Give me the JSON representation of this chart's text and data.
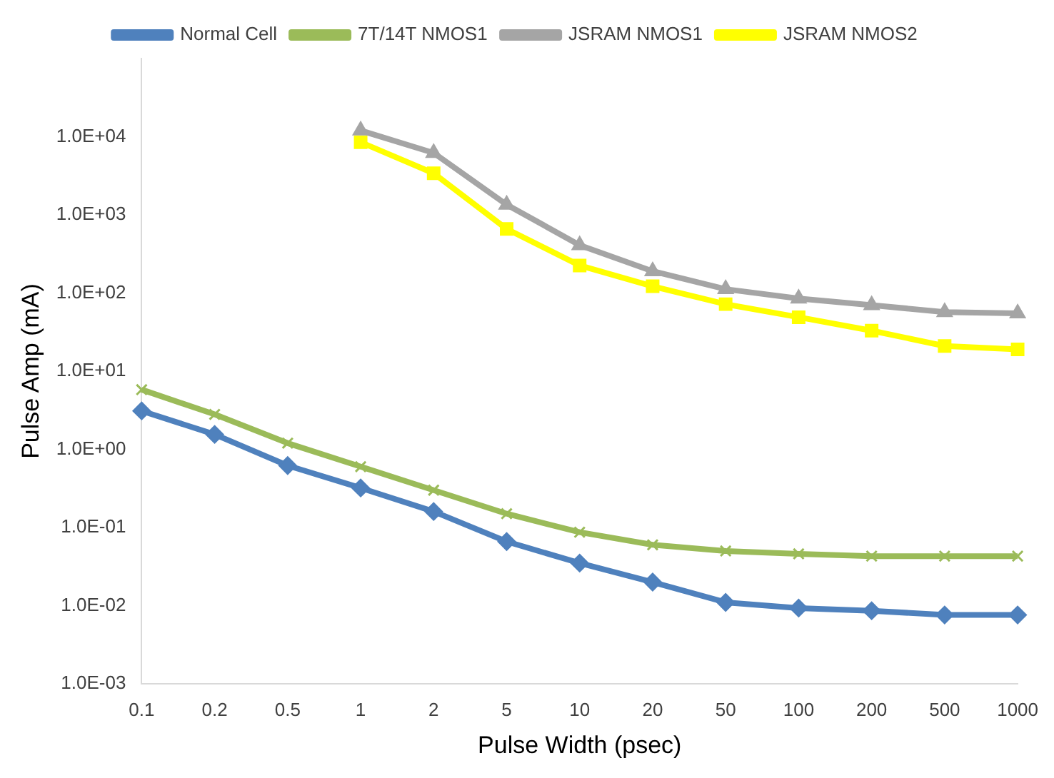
{
  "chart_data": {
    "type": "line",
    "xlabel": "Pulse Width (psec)",
    "ylabel": "Pulse Amp (mA)",
    "categories": [
      "0.1",
      "0.2",
      "0.5",
      "1",
      "2",
      "5",
      "10",
      "20",
      "50",
      "100",
      "200",
      "500",
      "1000"
    ],
    "series": [
      {
        "name": "Normal Cell",
        "color": "#4f81bd",
        "marker": "diamond",
        "values": [
          3.1,
          1.55,
          0.62,
          0.32,
          0.16,
          0.066,
          0.035,
          0.02,
          0.011,
          0.0093,
          0.0086,
          0.0076,
          0.0076
        ]
      },
      {
        "name": "7T/14T NMOS1",
        "color": "#9bbb59",
        "marker": "cross",
        "values": [
          5.8,
          2.8,
          1.2,
          0.6,
          0.3,
          0.15,
          0.087,
          0.06,
          0.05,
          0.046,
          0.043,
          0.043,
          0.043
        ]
      },
      {
        "name": "JSRAM NMOS1",
        "color": "#a5a5a5",
        "marker": "triangle",
        "values": [
          null,
          null,
          null,
          12000,
          6200,
          1350,
          410,
          190,
          112,
          85,
          70,
          57,
          55
        ]
      },
      {
        "name": "JSRAM NMOS2",
        "color": "#ffff00",
        "marker": "square",
        "values": [
          null,
          null,
          null,
          8500,
          3400,
          660,
          225,
          122,
          72,
          49,
          33,
          21,
          19
        ]
      }
    ],
    "log": true,
    "ylim": [
      0.001,
      100000
    ],
    "yticks": [
      {
        "value": 0.001,
        "label": "1.0E-03"
      },
      {
        "value": 0.01,
        "label": "1.0E-02"
      },
      {
        "value": 0.1,
        "label": "1.0E-01"
      },
      {
        "value": 1,
        "label": "1.0E+00"
      },
      {
        "value": 10,
        "label": "1.0E+01"
      },
      {
        "value": 100,
        "label": "1.0E+02"
      },
      {
        "value": 1000,
        "label": "1.0E+03"
      },
      {
        "value": 10000,
        "label": "1.0E+04"
      }
    ],
    "grid": false,
    "legend": "top",
    "line_style": "solid"
  }
}
